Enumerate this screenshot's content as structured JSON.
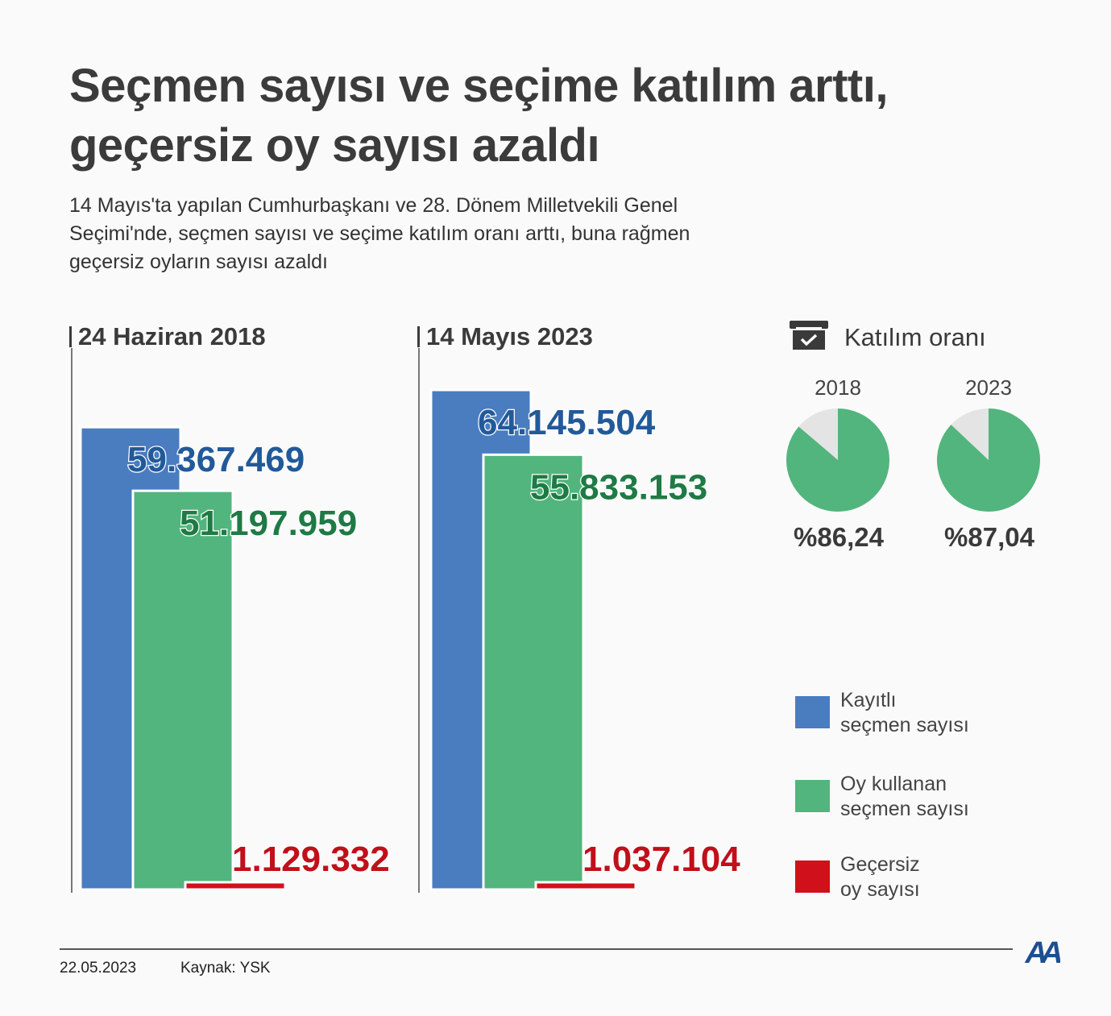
{
  "header": {
    "title_line1": "Seçmen sayısı ve seçime katılım arttı,",
    "title_line2": "geçersiz oy sayısı azaldı",
    "subtitle_line1": "14 Mayıs'ta yapılan Cumhurbaşkanı ve 28. Dönem Milletvekili Genel",
    "subtitle_line2": "Seçimi'nde, seçmen sayısı ve seçime katılım oranı arttı, buna rağmen",
    "subtitle_line3": "geçersiz oyların sayısı azaldı"
  },
  "colors": {
    "registered": "#4a7cc0",
    "voted": "#52b57d",
    "invalid": "#d0111b",
    "registered_text": "#225a99",
    "voted_text": "#1f7a45",
    "invalid_text": "#c0101a",
    "pie_rest": "#e4e4e4"
  },
  "chart_data": [
    {
      "type": "bar",
      "title": "24 Haziran 2018",
      "categories": [
        "Kayıtlı seçmen sayısı",
        "Oy kullanan seçmen sayısı",
        "Geçersiz oy sayısı"
      ],
      "values": [
        59367469,
        51197959,
        1129332
      ],
      "value_labels": [
        "59.367.469",
        "51.197.959",
        "1.129.332"
      ]
    },
    {
      "type": "bar",
      "title": "14 Mayıs 2023",
      "categories": [
        "Kayıtlı seçmen sayısı",
        "Oy kullanan seçmen sayısı",
        "Geçersiz oy sayısı"
      ],
      "values": [
        64145504,
        55833153,
        1037104
      ],
      "value_labels": [
        "64.145.504",
        "55.833.153",
        "1.037.104"
      ]
    },
    {
      "type": "pie",
      "title": "Katılım oranı",
      "series": [
        {
          "name": "2018",
          "value": 86.24,
          "label": "%86,24"
        },
        {
          "name": "2023",
          "value": 87.04,
          "label": "%87,04"
        }
      ]
    }
  ],
  "panels": {
    "p2018_label": "24 Haziran 2018",
    "p2023_label": "14 Mayıs 2023"
  },
  "pie": {
    "heading": "Katılım oranı",
    "icon": "ballot-box-icon",
    "year_2018": "2018",
    "year_2023": "2023",
    "pct_2018": "%86,24",
    "pct_2023": "%87,04"
  },
  "legend": {
    "registered": "Kayıtlı\nseçmen sayısı",
    "voted": "Oy kullanan\nseçmen sayısı",
    "invalid": "Geçersiz\noy sayısı"
  },
  "footer": {
    "date": "22.05.2023",
    "source": "Kaynak: YSK",
    "logo": "AA"
  }
}
